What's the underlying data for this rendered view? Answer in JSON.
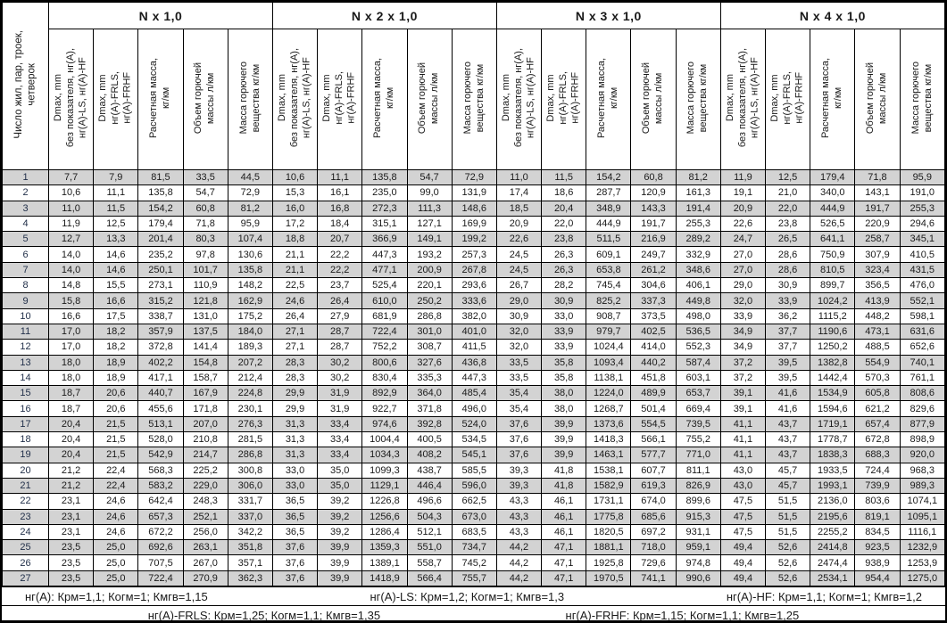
{
  "colors": {
    "row_shade": "#d3d3d3",
    "border": "#000000",
    "background": "#ffffff"
  },
  "table": {
    "row_label_header": "Число жил, пар, троек,\nчетверок",
    "sub_columns": [
      "Dmax, mm\nбез показателя, нг(А),\nнг(А)-LS, нг(А)-HF",
      "Dmax, mm\nнг(А)-FRLS,\nнг(А)-FRHF",
      "Расчетная масса,\nкг/км",
      "Объем горючей\nмассы л/км",
      "Масса горючего\nвещества кг/км"
    ],
    "groups": [
      {
        "title": "N x 1,0"
      },
      {
        "title": "N x 2 x 1,0"
      },
      {
        "title": "N x 3 x 1,0"
      },
      {
        "title": "N x 4 x 1,0"
      }
    ],
    "rows": [
      {
        "n": "1",
        "g": [
          [
            "7,7",
            "7,9",
            "81,5",
            "33,5",
            "44,5"
          ],
          [
            "10,6",
            "11,1",
            "135,8",
            "54,7",
            "72,9"
          ],
          [
            "11,0",
            "11,5",
            "154,2",
            "60,8",
            "81,2"
          ],
          [
            "11,9",
            "12,5",
            "179,4",
            "71,8",
            "95,9"
          ]
        ]
      },
      {
        "n": "2",
        "g": [
          [
            "10,6",
            "11,1",
            "135,8",
            "54,7",
            "72,9"
          ],
          [
            "15,3",
            "16,1",
            "235,0",
            "99,0",
            "131,9"
          ],
          [
            "17,4",
            "18,6",
            "287,7",
            "120,9",
            "161,3"
          ],
          [
            "19,1",
            "21,0",
            "340,0",
            "143,1",
            "191,0"
          ]
        ]
      },
      {
        "n": "3",
        "g": [
          [
            "11,0",
            "11,5",
            "154,2",
            "60,8",
            "81,2"
          ],
          [
            "16,0",
            "16,8",
            "272,3",
            "111,3",
            "148,6"
          ],
          [
            "18,5",
            "20,4",
            "348,9",
            "143,3",
            "191,4"
          ],
          [
            "20,9",
            "22,0",
            "444,9",
            "191,7",
            "255,3"
          ]
        ]
      },
      {
        "n": "4",
        "g": [
          [
            "11,9",
            "12,5",
            "179,4",
            "71,8",
            "95,9"
          ],
          [
            "17,2",
            "18,4",
            "315,1",
            "127,1",
            "169,9"
          ],
          [
            "20,9",
            "22,0",
            "444,9",
            "191,7",
            "255,3"
          ],
          [
            "22,6",
            "23,8",
            "526,5",
            "220,9",
            "294,6"
          ]
        ]
      },
      {
        "n": "5",
        "g": [
          [
            "12,7",
            "13,3",
            "201,4",
            "80,3",
            "107,4"
          ],
          [
            "18,8",
            "20,7",
            "366,9",
            "149,1",
            "199,2"
          ],
          [
            "22,6",
            "23,8",
            "511,5",
            "216,9",
            "289,2"
          ],
          [
            "24,7",
            "26,5",
            "641,1",
            "258,7",
            "345,1"
          ]
        ]
      },
      {
        "n": "6",
        "g": [
          [
            "14,0",
            "14,6",
            "235,2",
            "97,8",
            "130,6"
          ],
          [
            "21,1",
            "22,2",
            "447,3",
            "193,2",
            "257,3"
          ],
          [
            "24,5",
            "26,3",
            "609,1",
            "249,7",
            "332,9"
          ],
          [
            "27,0",
            "28,6",
            "750,9",
            "307,9",
            "410,5"
          ]
        ]
      },
      {
        "n": "7",
        "g": [
          [
            "14,0",
            "14,6",
            "250,1",
            "101,7",
            "135,8"
          ],
          [
            "21,1",
            "22,2",
            "477,1",
            "200,9",
            "267,8"
          ],
          [
            "24,5",
            "26,3",
            "653,8",
            "261,2",
            "348,6"
          ],
          [
            "27,0",
            "28,6",
            "810,5",
            "323,4",
            "431,5"
          ]
        ]
      },
      {
        "n": "8",
        "g": [
          [
            "14,8",
            "15,5",
            "273,1",
            "110,9",
            "148,2"
          ],
          [
            "22,5",
            "23,7",
            "525,4",
            "220,1",
            "293,6"
          ],
          [
            "26,7",
            "28,2",
            "745,4",
            "304,6",
            "406,1"
          ],
          [
            "29,0",
            "30,9",
            "899,7",
            "356,5",
            "476,0"
          ]
        ]
      },
      {
        "n": "9",
        "g": [
          [
            "15,8",
            "16,6",
            "315,2",
            "121,8",
            "162,9"
          ],
          [
            "24,6",
            "26,4",
            "610,0",
            "250,2",
            "333,6"
          ],
          [
            "29,0",
            "30,9",
            "825,2",
            "337,3",
            "449,8"
          ],
          [
            "32,0",
            "33,9",
            "1024,2",
            "413,9",
            "552,1"
          ]
        ]
      },
      {
        "n": "10",
        "g": [
          [
            "16,6",
            "17,5",
            "338,7",
            "131,0",
            "175,2"
          ],
          [
            "26,4",
            "27,9",
            "681,9",
            "286,8",
            "382,0"
          ],
          [
            "30,9",
            "33,0",
            "908,7",
            "373,5",
            "498,0"
          ],
          [
            "33,9",
            "36,2",
            "1115,2",
            "448,2",
            "598,1"
          ]
        ]
      },
      {
        "n": "11",
        "g": [
          [
            "17,0",
            "18,2",
            "357,9",
            "137,5",
            "184,0"
          ],
          [
            "27,1",
            "28,7",
            "722,4",
            "301,0",
            "401,0"
          ],
          [
            "32,0",
            "33,9",
            "979,7",
            "402,5",
            "536,5"
          ],
          [
            "34,9",
            "37,7",
            "1190,6",
            "473,1",
            "631,6"
          ]
        ]
      },
      {
        "n": "12",
        "g": [
          [
            "17,0",
            "18,2",
            "372,8",
            "141,4",
            "189,3"
          ],
          [
            "27,1",
            "28,7",
            "752,2",
            "308,7",
            "411,5"
          ],
          [
            "32,0",
            "33,9",
            "1024,4",
            "414,0",
            "552,3"
          ],
          [
            "34,9",
            "37,7",
            "1250,2",
            "488,5",
            "652,6"
          ]
        ]
      },
      {
        "n": "13",
        "g": [
          [
            "18,0",
            "18,9",
            "402,2",
            "154,8",
            "207,2"
          ],
          [
            "28,3",
            "30,2",
            "800,6",
            "327,6",
            "436,8"
          ],
          [
            "33,5",
            "35,8",
            "1093,4",
            "440,2",
            "587,4"
          ],
          [
            "37,2",
            "39,5",
            "1382,8",
            "554,9",
            "740,1"
          ]
        ]
      },
      {
        "n": "14",
        "g": [
          [
            "18,0",
            "18,9",
            "417,1",
            "158,7",
            "212,4"
          ],
          [
            "28,3",
            "30,2",
            "830,4",
            "335,3",
            "447,3"
          ],
          [
            "33,5",
            "35,8",
            "1138,1",
            "451,8",
            "603,1"
          ],
          [
            "37,2",
            "39,5",
            "1442,4",
            "570,3",
            "761,1"
          ]
        ]
      },
      {
        "n": "15",
        "g": [
          [
            "18,7",
            "20,6",
            "440,7",
            "167,9",
            "224,8"
          ],
          [
            "29,9",
            "31,9",
            "892,9",
            "364,0",
            "485,4"
          ],
          [
            "35,4",
            "38,0",
            "1224,0",
            "489,9",
            "653,7"
          ],
          [
            "39,1",
            "41,6",
            "1534,9",
            "605,8",
            "808,6"
          ]
        ]
      },
      {
        "n": "16",
        "g": [
          [
            "18,7",
            "20,6",
            "455,6",
            "171,8",
            "230,1"
          ],
          [
            "29,9",
            "31,9",
            "922,7",
            "371,8",
            "496,0"
          ],
          [
            "35,4",
            "38,0",
            "1268,7",
            "501,4",
            "669,4"
          ],
          [
            "39,1",
            "41,6",
            "1594,6",
            "621,2",
            "829,6"
          ]
        ]
      },
      {
        "n": "17",
        "g": [
          [
            "20,4",
            "21,5",
            "513,1",
            "207,0",
            "276,3"
          ],
          [
            "31,3",
            "33,4",
            "974,6",
            "392,8",
            "524,0"
          ],
          [
            "37,6",
            "39,9",
            "1373,6",
            "554,5",
            "739,5"
          ],
          [
            "41,1",
            "43,7",
            "1719,1",
            "657,4",
            "877,9"
          ]
        ]
      },
      {
        "n": "18",
        "g": [
          [
            "20,4",
            "21,5",
            "528,0",
            "210,8",
            "281,5"
          ],
          [
            "31,3",
            "33,4",
            "1004,4",
            "400,5",
            "534,5"
          ],
          [
            "37,6",
            "39,9",
            "1418,3",
            "566,1",
            "755,2"
          ],
          [
            "41,1",
            "43,7",
            "1778,7",
            "672,8",
            "898,9"
          ]
        ]
      },
      {
        "n": "19",
        "g": [
          [
            "20,4",
            "21,5",
            "542,9",
            "214,7",
            "286,8"
          ],
          [
            "31,3",
            "33,4",
            "1034,3",
            "408,2",
            "545,1"
          ],
          [
            "37,6",
            "39,9",
            "1463,1",
            "577,7",
            "771,0"
          ],
          [
            "41,1",
            "43,7",
            "1838,3",
            "688,3",
            "920,0"
          ]
        ]
      },
      {
        "n": "20",
        "g": [
          [
            "21,2",
            "22,4",
            "568,3",
            "225,2",
            "300,8"
          ],
          [
            "33,0",
            "35,0",
            "1099,3",
            "438,7",
            "585,5"
          ],
          [
            "39,3",
            "41,8",
            "1538,1",
            "607,7",
            "811,1"
          ],
          [
            "43,0",
            "45,7",
            "1933,5",
            "724,4",
            "968,3"
          ]
        ]
      },
      {
        "n": "21",
        "g": [
          [
            "21,2",
            "22,4",
            "583,2",
            "229,0",
            "306,0"
          ],
          [
            "33,0",
            "35,0",
            "1129,1",
            "446,4",
            "596,0"
          ],
          [
            "39,3",
            "41,8",
            "1582,9",
            "619,3",
            "826,9"
          ],
          [
            "43,0",
            "45,7",
            "1993,1",
            "739,9",
            "989,3"
          ]
        ]
      },
      {
        "n": "22",
        "g": [
          [
            "23,1",
            "24,6",
            "642,4",
            "248,3",
            "331,7"
          ],
          [
            "36,5",
            "39,2",
            "1226,8",
            "496,6",
            "662,5"
          ],
          [
            "43,3",
            "46,1",
            "1731,1",
            "674,0",
            "899,6"
          ],
          [
            "47,5",
            "51,5",
            "2136,0",
            "803,6",
            "1074,1"
          ]
        ]
      },
      {
        "n": "23",
        "g": [
          [
            "23,1",
            "24,6",
            "657,3",
            "252,1",
            "337,0"
          ],
          [
            "36,5",
            "39,2",
            "1256,6",
            "504,3",
            "673,0"
          ],
          [
            "43,3",
            "46,1",
            "1775,8",
            "685,6",
            "915,3"
          ],
          [
            "47,5",
            "51,5",
            "2195,6",
            "819,1",
            "1095,1"
          ]
        ]
      },
      {
        "n": "24",
        "g": [
          [
            "23,1",
            "24,6",
            "672,2",
            "256,0",
            "342,2"
          ],
          [
            "36,5",
            "39,2",
            "1286,4",
            "512,1",
            "683,5"
          ],
          [
            "43,3",
            "46,1",
            "1820,5",
            "697,2",
            "931,1"
          ],
          [
            "47,5",
            "51,5",
            "2255,2",
            "834,5",
            "1116,1"
          ]
        ]
      },
      {
        "n": "25",
        "g": [
          [
            "23,5",
            "25,0",
            "692,6",
            "263,1",
            "351,8"
          ],
          [
            "37,6",
            "39,9",
            "1359,3",
            "551,0",
            "734,7"
          ],
          [
            "44,2",
            "47,1",
            "1881,1",
            "718,0",
            "959,1"
          ],
          [
            "49,4",
            "52,6",
            "2414,8",
            "923,5",
            "1232,9"
          ]
        ]
      },
      {
        "n": "26",
        "g": [
          [
            "23,5",
            "25,0",
            "707,5",
            "267,0",
            "357,1"
          ],
          [
            "37,6",
            "39,9",
            "1389,1",
            "558,7",
            "745,2"
          ],
          [
            "44,2",
            "47,1",
            "1925,8",
            "729,6",
            "974,8"
          ],
          [
            "49,4",
            "52,6",
            "2474,4",
            "938,9",
            "1253,9"
          ]
        ]
      },
      {
        "n": "27",
        "g": [
          [
            "23,5",
            "25,0",
            "722,4",
            "270,9",
            "362,3"
          ],
          [
            "37,6",
            "39,9",
            "1418,9",
            "566,4",
            "755,7"
          ],
          [
            "44,2",
            "47,1",
            "1970,5",
            "741,1",
            "990,6"
          ],
          [
            "49,4",
            "52,6",
            "2534,1",
            "954,4",
            "1275,0"
          ]
        ]
      }
    ]
  },
  "footer": {
    "line1": [
      "нг(А): Крм=1,1;  Когм=1;  Кмгв=1,15",
      "нг(А)-LS: Крм=1,2;  Когм=1;  Кмгв=1,3",
      "нг(А)-HF: Крм=1,1;  Когм=1;  Кмгв=1,2"
    ],
    "line2": [
      "нг(А)-FRLS: Крм=1,25;  Когм=1,1;  Кмгв=1,35",
      "нг(А)-FRHF: Крм=1,15;  Когм=1,1;  Кмгв=1,25"
    ]
  }
}
